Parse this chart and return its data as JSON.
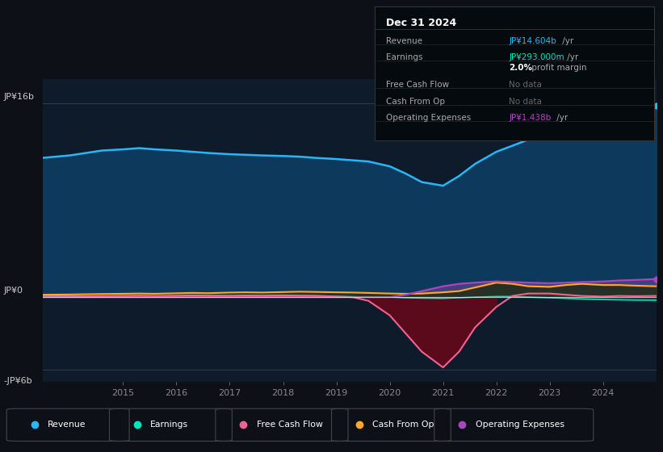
{
  "bg_color": "#0d1117",
  "plot_bg_color": "#0d1b2a",
  "years": [
    2013.5,
    2014,
    2014.3,
    2014.6,
    2015,
    2015.3,
    2015.6,
    2016,
    2016.3,
    2016.6,
    2017,
    2017.3,
    2017.6,
    2018,
    2018.3,
    2018.6,
    2019,
    2019.3,
    2019.6,
    2020,
    2020.3,
    2020.6,
    2021,
    2021.3,
    2021.6,
    2022,
    2022.3,
    2022.6,
    2023,
    2023.3,
    2023.6,
    2024,
    2024.3,
    2024.6,
    2025.0
  ],
  "revenue": [
    11.5,
    11.7,
    11.9,
    12.1,
    12.2,
    12.3,
    12.2,
    12.1,
    12.0,
    11.9,
    11.8,
    11.75,
    11.7,
    11.65,
    11.6,
    11.5,
    11.4,
    11.3,
    11.2,
    10.8,
    10.2,
    9.5,
    9.2,
    10.0,
    11.0,
    12.0,
    12.5,
    13.0,
    13.5,
    13.8,
    14.2,
    13.8,
    14.0,
    14.8,
    15.8
  ],
  "earnings": [
    0.08,
    0.09,
    0.09,
    0.1,
    0.1,
    0.1,
    0.09,
    0.08,
    0.07,
    0.06,
    0.05,
    0.05,
    0.06,
    0.07,
    0.08,
    0.07,
    0.05,
    0.03,
    0.01,
    0.0,
    -0.05,
    -0.08,
    -0.1,
    -0.05,
    0.0,
    0.05,
    0.05,
    0.0,
    -0.05,
    -0.1,
    -0.15,
    -0.2,
    -0.22,
    -0.24,
    -0.25
  ],
  "free_cash_flow": [
    0.05,
    0.06,
    0.07,
    0.08,
    0.1,
    0.12,
    0.1,
    0.12,
    0.15,
    0.13,
    0.12,
    0.14,
    0.13,
    0.15,
    0.13,
    0.12,
    0.05,
    0.0,
    -0.3,
    -1.5,
    -3.0,
    -4.5,
    -5.8,
    -4.5,
    -2.5,
    -0.8,
    0.1,
    0.3,
    0.3,
    0.2,
    0.1,
    0.05,
    0.1,
    0.08,
    0.1
  ],
  "cash_from_op": [
    0.2,
    0.22,
    0.24,
    0.26,
    0.28,
    0.3,
    0.28,
    0.32,
    0.35,
    0.33,
    0.38,
    0.4,
    0.38,
    0.42,
    0.45,
    0.43,
    0.4,
    0.38,
    0.35,
    0.3,
    0.28,
    0.3,
    0.4,
    0.5,
    0.8,
    1.2,
    1.1,
    0.9,
    0.85,
    1.0,
    1.1,
    1.0,
    1.0,
    0.95,
    0.9
  ],
  "op_expenses": [
    0.0,
    0.0,
    0.0,
    0.0,
    0.0,
    0.0,
    0.0,
    0.0,
    0.0,
    0.0,
    0.0,
    0.0,
    0.0,
    0.0,
    0.0,
    0.0,
    0.0,
    0.0,
    0.0,
    0.0,
    0.2,
    0.5,
    0.9,
    1.1,
    1.2,
    1.3,
    1.25,
    1.2,
    1.15,
    1.2,
    1.25,
    1.3,
    1.38,
    1.42,
    1.5
  ],
  "revenue_color": "#29b6f6",
  "earnings_color": "#00e5c0",
  "free_cash_flow_color": "#f06292",
  "cash_from_op_color": "#ffa726",
  "op_expenses_color": "#ab47bc",
  "revenue_fill": "#0d3a5c",
  "free_cash_flow_fill_neg": "#5a0a1a",
  "x_ticks": [
    2015,
    2016,
    2017,
    2018,
    2019,
    2020,
    2021,
    2022,
    2023,
    2024
  ],
  "x_tick_labels": [
    "2015",
    "2016",
    "2017",
    "2018",
    "2019",
    "2020",
    "2021",
    "2022",
    "2023",
    "2024"
  ],
  "legend_items": [
    "Revenue",
    "Earnings",
    "Free Cash Flow",
    "Cash From Op",
    "Operating Expenses"
  ],
  "legend_colors": [
    "#29b6f6",
    "#00e5c0",
    "#f06292",
    "#ffa726",
    "#ab47bc"
  ],
  "info_box_title": "Dec 31 2024",
  "info_rows": [
    {
      "label": "Revenue",
      "val_colored": "JP¥14.604b",
      "val_plain": " /yr",
      "val_color": "#29b6f6",
      "no_data": false
    },
    {
      "label": "Earnings",
      "val_colored": "JP¥293.000m",
      "val_plain": " /yr",
      "val_color": "#00e5c0",
      "no_data": false
    },
    {
      "label": "",
      "val_colored": "2.0%",
      "val_plain": " profit margin",
      "val_color": "#ffffff",
      "no_data": false,
      "bold": true
    },
    {
      "label": "Free Cash Flow",
      "val_colored": "No data",
      "val_plain": "",
      "val_color": "#666666",
      "no_data": true
    },
    {
      "label": "Cash From Op",
      "val_colored": "No data",
      "val_plain": "",
      "val_color": "#666666",
      "no_data": true
    },
    {
      "label": "Operating Expenses",
      "val_colored": "JP¥1.438b",
      "val_plain": " /yr",
      "val_color": "#ab47bc",
      "no_data": false
    }
  ],
  "ylim": [
    -7,
    18
  ],
  "y_label_16": "JP¥16b",
  "y_label_0": "JP¥0",
  "y_label_n6": "-JP¥6b"
}
